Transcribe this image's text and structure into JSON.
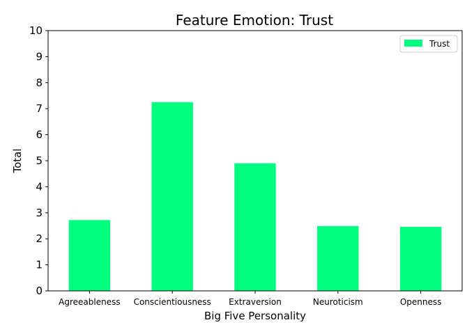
{
  "chart_data": {
    "type": "bar",
    "title": "Feature Emotion: Trust",
    "xlabel": "Big Five Personality",
    "ylabel": "Total",
    "categories": [
      "Agreeableness",
      "Conscientiousness",
      "Extraversion",
      "Neuroticism",
      "Openness"
    ],
    "series": [
      {
        "name": "Trust",
        "values": [
          2.72,
          7.25,
          4.9,
          2.49,
          2.46
        ],
        "color": "#00ff7f"
      }
    ],
    "ylim": [
      0,
      10
    ],
    "yticks": [
      "0",
      "1",
      "2",
      "3",
      "4",
      "5",
      "6",
      "7",
      "8",
      "9",
      "10"
    ],
    "grid": false,
    "legend_position": "top-right"
  }
}
